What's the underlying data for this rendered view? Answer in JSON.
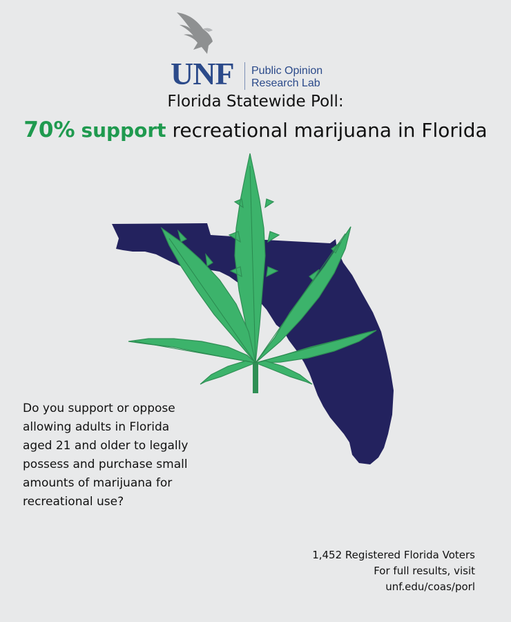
{
  "logo": {
    "wordmark": "UNF",
    "lab_line1": "Public Opinion",
    "lab_line2": "Research Lab",
    "icon": "osprey-icon",
    "color": "#2b4a8a"
  },
  "subtitle": "Florida Statewide Poll:",
  "headline": {
    "percent": "70%",
    "support_word": "support",
    "rest": "recreational marijuana in Florida",
    "accent_color": "#1f9a4f"
  },
  "graphic": {
    "map_icon": "florida-map-icon",
    "leaf_icon": "cannabis-leaf-icon",
    "map_color": "#23225e",
    "leaf_color": "#3cb36b"
  },
  "question": {
    "lines": [
      "Do you support or oppose",
      "allowing adults in Florida",
      "aged 21 and older to legally",
      "possess and purchase small",
      "amounts of marijuana for",
      "recreational use?"
    ]
  },
  "footer": {
    "sample": "1,452 Registered Florida Voters",
    "cta": "For full results, visit",
    "url": "unf.edu/coas/porl"
  }
}
